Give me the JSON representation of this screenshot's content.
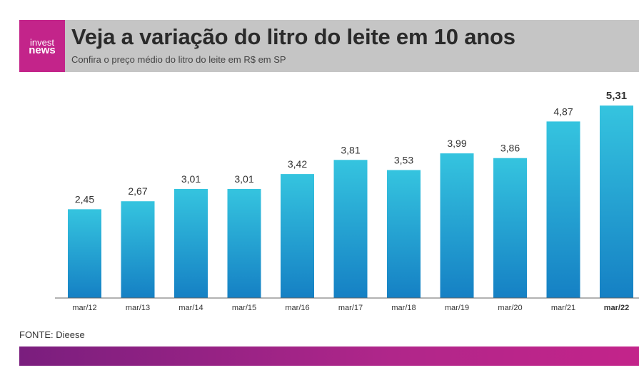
{
  "header": {
    "logo_line1": "invest",
    "logo_line2": "news",
    "title": "Veja a variação do litro do leite em 10 anos",
    "subtitle": "Confira o preço médio do litro do leite em R$ em SP"
  },
  "source": "FONTE: Dieese",
  "colors": {
    "logo_bg": "#c3248a",
    "header_bg": "#c5c5c5",
    "bar_top": "#35c4df",
    "bar_bottom": "#1580c4",
    "footer_left": "#7a1e7e",
    "footer_right": "#c3248a"
  },
  "chart_data": {
    "type": "bar",
    "categories": [
      "mar/12",
      "mar/13",
      "mar/14",
      "mar/15",
      "mar/16",
      "mar/17",
      "mar/18",
      "mar/19",
      "mar/20",
      "mar/21",
      "mar/22"
    ],
    "values": [
      2.45,
      2.67,
      3.01,
      3.01,
      3.42,
      3.81,
      3.53,
      3.99,
      3.86,
      4.87,
      5.31
    ],
    "value_labels": [
      "2,45",
      "2,67",
      "3,01",
      "3,01",
      "3,42",
      "3,81",
      "3,53",
      "3,99",
      "3,86",
      "4,87",
      "5,31"
    ],
    "highlight_index": 10,
    "ylim": [
      0,
      5.31
    ],
    "grid": false,
    "legend": "none"
  }
}
